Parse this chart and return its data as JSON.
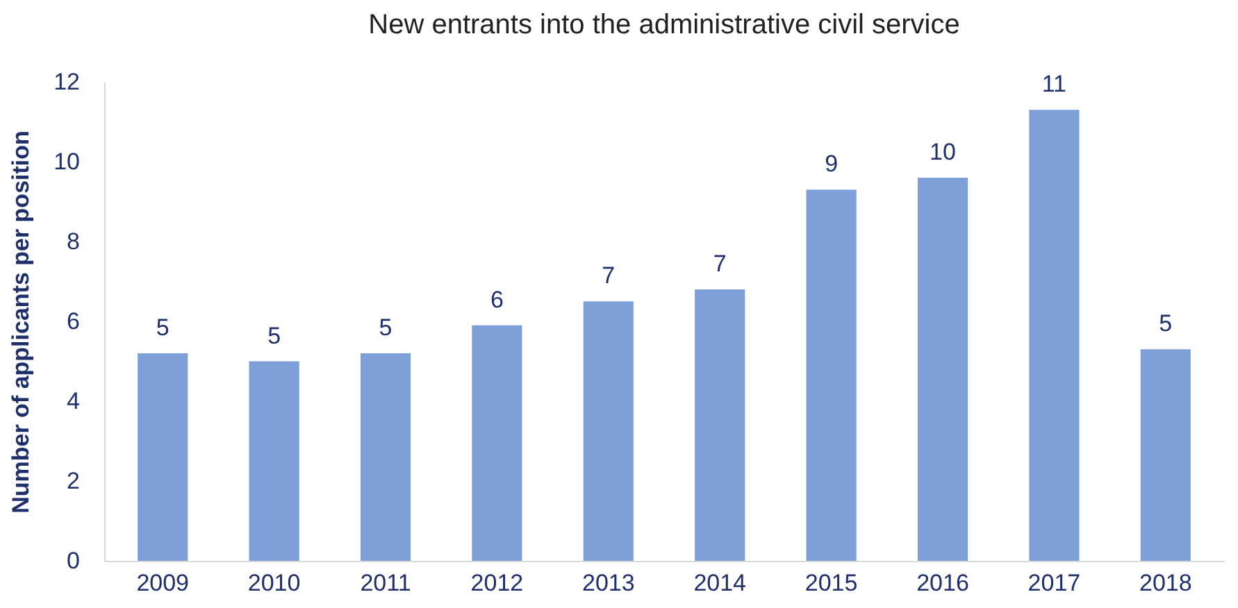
{
  "chart_data": {
    "type": "bar",
    "title": "New entrants into the administrative civil service",
    "ylabel": "Number of applicants per position",
    "categories": [
      "2009",
      "2010",
      "2011",
      "2012",
      "2013",
      "2014",
      "2015",
      "2016",
      "2017",
      "2018"
    ],
    "values": [
      5.2,
      5.0,
      5.2,
      5.9,
      6.5,
      6.8,
      9.3,
      9.6,
      11.3,
      5.3
    ],
    "value_labels": [
      "5",
      "5",
      "5",
      "6",
      "7",
      "7",
      "9",
      "10",
      "11",
      "5"
    ],
    "color": "#7f9fd8",
    "ylim": [
      0,
      12
    ],
    "yticks": [
      0,
      2,
      4,
      6,
      8,
      10,
      12
    ],
    "grid": false
  }
}
